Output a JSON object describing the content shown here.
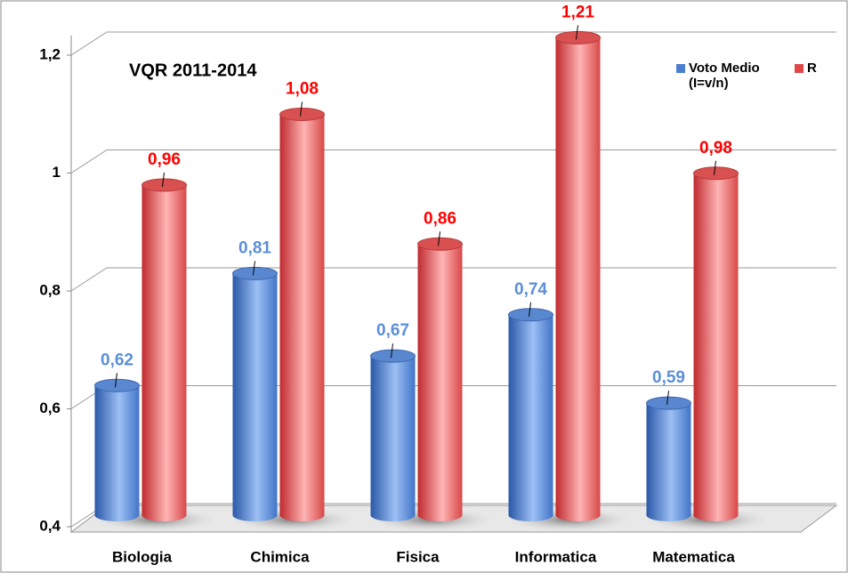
{
  "chart_data": {
    "type": "bar3d",
    "title": "VQR 2011-2014",
    "categories": [
      "Biologia",
      "Chimica",
      "Fisica",
      "Informatica",
      "Matematica"
    ],
    "series": [
      {
        "name": "Voto Medio (I=v/n)",
        "color": "#4a7fd0",
        "values": [
          0.62,
          0.81,
          0.67,
          0.74,
          0.59
        ],
        "value_labels": [
          "0,62",
          "0,81",
          "0,67",
          "0,74",
          "0,59"
        ]
      },
      {
        "name": "R",
        "color": "#e04848",
        "values": [
          0.96,
          1.08,
          0.86,
          1.21,
          0.98
        ],
        "value_labels": [
          "0,96",
          "1,08",
          "0,86",
          "1,21",
          "0,98"
        ]
      }
    ],
    "ylim": [
      0.4,
      1.2
    ],
    "yticks": [
      {
        "value": 0.4,
        "label": "0,4"
      },
      {
        "value": 0.6,
        "label": "0,6"
      },
      {
        "value": 0.8,
        "label": "0,8"
      },
      1,
      {
        "value": 1.2,
        "label": "1,2"
      }
    ],
    "grid": true
  }
}
